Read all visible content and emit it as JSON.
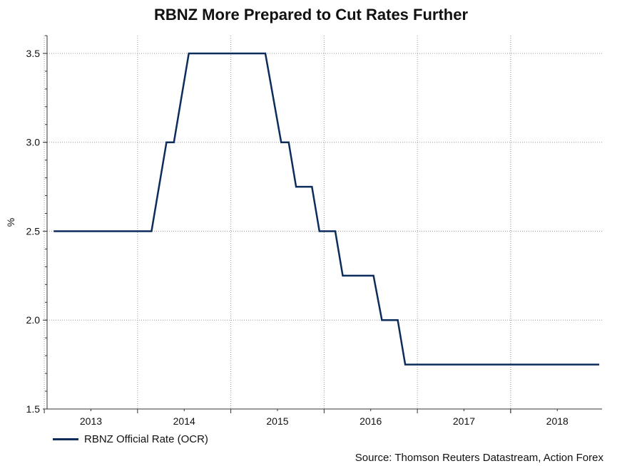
{
  "chart_data": {
    "type": "line",
    "title": "RBNZ More Prepared to Cut Rates Further",
    "ylabel": "%",
    "xlabel": "",
    "ylim": [
      1.5,
      3.6
    ],
    "xlim": [
      2012.6,
      2018.45
    ],
    "yticks": [
      1.5,
      2.0,
      2.5,
      3.0,
      3.5
    ],
    "ytick_labels": [
      "1.5",
      "2.0",
      "2.5",
      "3.0",
      "3.5"
    ],
    "year_boundaries": [
      2013,
      2014,
      2015,
      2016,
      2017,
      2018
    ],
    "x_tick_labels": [
      {
        "label": "2013",
        "x": 2013.0
      },
      {
        "label": "2014",
        "x": 2014.0
      },
      {
        "label": "2015",
        "x": 2015.0
      },
      {
        "label": "2016",
        "x": 2016.0
      },
      {
        "label": "2017",
        "x": 2017.0
      },
      {
        "label": "2018",
        "x": 2018.0
      }
    ],
    "grid": true,
    "color": "#0c2d5c",
    "series": [
      {
        "name": "RBNZ Official Rate (OCR)",
        "points": [
          [
            2012.6,
            2.5
          ],
          [
            2013.65,
            2.5
          ],
          [
            2013.81,
            3.0
          ],
          [
            2013.89,
            3.0
          ],
          [
            2014.05,
            3.5
          ],
          [
            2014.87,
            3.5
          ],
          [
            2015.04,
            3.0
          ],
          [
            2015.12,
            3.0
          ],
          [
            2015.2,
            2.75
          ],
          [
            2015.37,
            2.75
          ],
          [
            2015.45,
            2.5
          ],
          [
            2015.62,
            2.5
          ],
          [
            2015.7,
            2.25
          ],
          [
            2016.03,
            2.25
          ],
          [
            2016.12,
            2.0
          ],
          [
            2016.29,
            2.0
          ],
          [
            2016.37,
            1.75
          ],
          [
            2018.45,
            1.75
          ]
        ]
      }
    ],
    "legend": "bottom-left",
    "source": "Source: Thomson Reuters Datastream, Action Forex"
  }
}
